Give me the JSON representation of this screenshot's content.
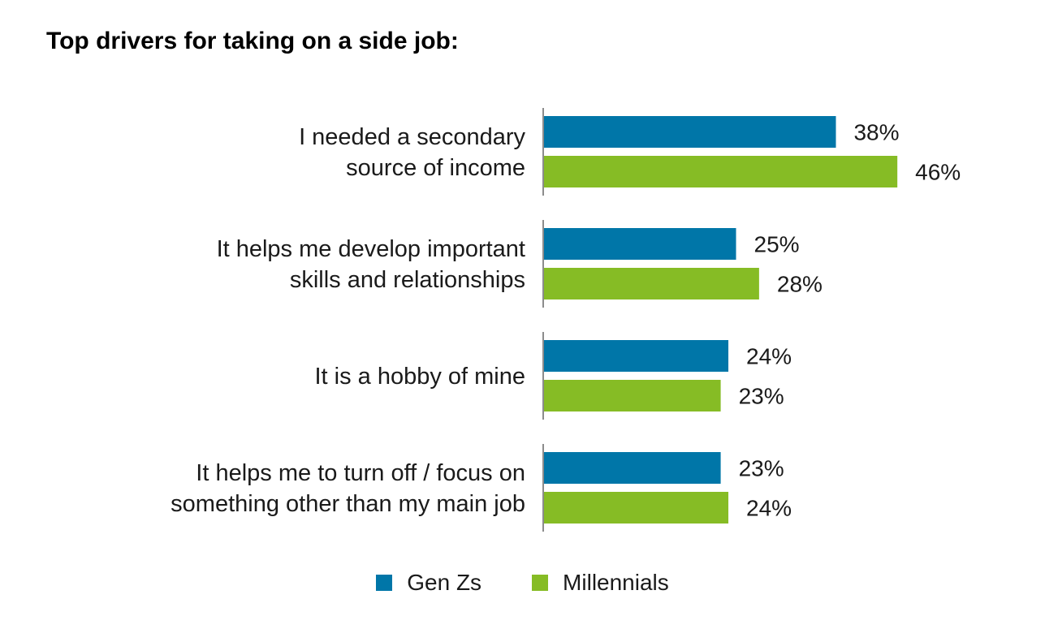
{
  "chart_data": {
    "type": "bar",
    "orientation": "horizontal",
    "title": "Top drivers for taking on a side job:",
    "categories": [
      [
        "I needed a secondary",
        "source of income"
      ],
      [
        "It helps me develop important",
        "skills and relationships"
      ],
      [
        "It is a hobby of mine"
      ],
      [
        "It helps me to turn off / focus on",
        "something other than my main job"
      ]
    ],
    "series": [
      {
        "name": "Gen Zs",
        "color": "#0076a8",
        "values": [
          38,
          25,
          24,
          23
        ],
        "labels": [
          "38%",
          "25%",
          "24%",
          "23%"
        ]
      },
      {
        "name": "Millennials",
        "color": "#86bc25",
        "values": [
          46,
          28,
          23,
          24
        ],
        "labels": [
          "46%",
          "28%",
          "23%",
          "24%"
        ]
      }
    ],
    "value_unit": "%",
    "xlim": [
      0,
      50
    ],
    "grid": false,
    "legend_position": "bottom"
  }
}
